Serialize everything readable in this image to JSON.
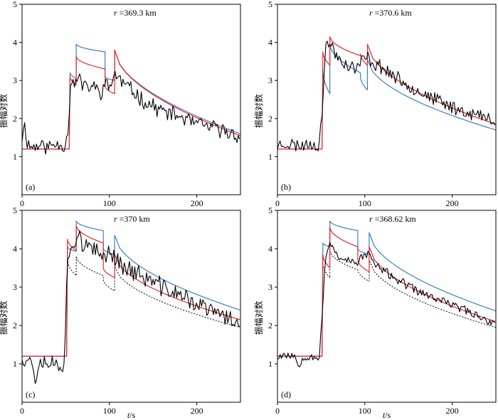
{
  "figure": {
    "ylabel": "振幅对数",
    "xlabel_italic": "t",
    "xlabel_unit": "/s"
  },
  "colors": {
    "observed": "#000000",
    "red_model": "#e8262b",
    "blue_model": "#3d7cc9",
    "dotted_model": "#000000"
  },
  "chart_data": [
    {
      "type": "line",
      "id": "a",
      "panel_label": "(a)",
      "r_label": "r",
      "annotation": "=369.3 km",
      "xlim": [
        0,
        250
      ],
      "ylim": [
        0,
        5
      ],
      "xticks": [
        0,
        100,
        200
      ],
      "yticks": [
        1,
        2,
        3,
        4,
        5
      ],
      "show_ylabel": true,
      "show_xlabel": false,
      "arrivals": [
        55,
        62,
        95,
        106
      ],
      "series": [
        {
          "name": "observed",
          "style": "observed",
          "base": 1.3,
          "noise": 0.18,
          "seed": 11,
          "points": [
            [
              0,
              1.5
            ],
            [
              2,
              1.9
            ],
            [
              6,
              1.4
            ],
            [
              10,
              1.25
            ],
            [
              20,
              1.3
            ],
            [
              30,
              1.25
            ],
            [
              40,
              1.35
            ],
            [
              48,
              1.3
            ],
            [
              52,
              1.5
            ],
            [
              54,
              2.2
            ],
            [
              56,
              3.2
            ],
            [
              58,
              2.9
            ],
            [
              62,
              2.95
            ],
            [
              66,
              3.1
            ],
            [
              70,
              2.8
            ],
            [
              80,
              2.85
            ],
            [
              90,
              2.7
            ],
            [
              95,
              2.9
            ],
            [
              100,
              2.8
            ],
            [
              106,
              3.2
            ],
            [
              110,
              3.05
            ],
            [
              120,
              2.85
            ],
            [
              140,
              2.45
            ],
            [
              160,
              2.2
            ],
            [
              180,
              2.05
            ],
            [
              200,
              1.85
            ],
            [
              220,
              1.75
            ],
            [
              240,
              1.6
            ],
            [
              250,
              1.55
            ]
          ]
        },
        {
          "name": "red model",
          "style": "red",
          "base": 1.2,
          "peaks": [
            3.1,
            3.62,
            2.85,
            3.8
          ],
          "decay": [
            0.22,
            0.32,
            0.2,
            0.3
          ],
          "tail_end": 1.55
        },
        {
          "name": "blue model",
          "style": "blue",
          "base": 1.2,
          "peaks": [
            3.2,
            3.95,
            3.1,
            3.8
          ],
          "decay": [
            0.15,
            0.2,
            0.1,
            0.2
          ],
          "tail_end": 1.6
        }
      ]
    },
    {
      "type": "line",
      "id": "b",
      "panel_label": "(b)",
      "r_label": "r",
      "annotation": "=370.6 km",
      "xlim": [
        0,
        250
      ],
      "ylim": [
        0,
        5
      ],
      "xticks": [
        0,
        100,
        200
      ],
      "yticks": [
        1,
        2,
        3,
        4,
        5
      ],
      "show_ylabel": true,
      "show_xlabel": false,
      "arrivals": [
        52,
        60,
        95,
        103
      ],
      "series": [
        {
          "name": "observed",
          "style": "observed",
          "base": 1.3,
          "noise": 0.16,
          "seed": 23,
          "points": [
            [
              0,
              1.3
            ],
            [
              10,
              1.35
            ],
            [
              20,
              1.3
            ],
            [
              30,
              1.3
            ],
            [
              40,
              1.35
            ],
            [
              48,
              1.3
            ],
            [
              52,
              2.5
            ],
            [
              55,
              3.9
            ],
            [
              60,
              4.0
            ],
            [
              64,
              3.8
            ],
            [
              70,
              3.6
            ],
            [
              80,
              3.4
            ],
            [
              90,
              3.3
            ],
            [
              95,
              3.5
            ],
            [
              103,
              3.6
            ],
            [
              110,
              3.45
            ],
            [
              120,
              3.35
            ],
            [
              140,
              3.0
            ],
            [
              160,
              2.75
            ],
            [
              180,
              2.5
            ],
            [
              200,
              2.3
            ],
            [
              220,
              2.15
            ],
            [
              240,
              2.0
            ],
            [
              250,
              1.95
            ]
          ]
        },
        {
          "name": "red model",
          "style": "red",
          "base": 1.2,
          "peaks": [
            3.75,
            4.15,
            3.7,
            3.95
          ],
          "decay": [
            0.35,
            0.5,
            0.3,
            0.25
          ],
          "tail_end": 1.85
        },
        {
          "name": "blue model",
          "style": "blue",
          "base": 1.2,
          "peaks": [
            3.25,
            3.95,
            3.1,
            3.55
          ],
          "decay": [
            0.6,
            0.75,
            0.35,
            0.4
          ],
          "tail_end": 1.7
        }
      ]
    },
    {
      "type": "line",
      "id": "c",
      "panel_label": "(c)",
      "r_label": "r",
      "annotation": "=370 km",
      "xlim": [
        0,
        250
      ],
      "ylim": [
        0,
        5
      ],
      "xticks": [
        0,
        100,
        200
      ],
      "yticks": [
        1,
        2,
        3,
        4,
        5
      ],
      "show_ylabel": true,
      "show_xlabel": true,
      "arrivals": [
        52,
        62,
        93,
        106
      ],
      "series": [
        {
          "name": "observed",
          "style": "observed",
          "base": 1.1,
          "noise": 0.22,
          "seed": 37,
          "points": [
            [
              0,
              1.2
            ],
            [
              10,
              1.1
            ],
            [
              16,
              0.6
            ],
            [
              20,
              1.1
            ],
            [
              30,
              1.05
            ],
            [
              40,
              1.0
            ],
            [
              48,
              1.0
            ],
            [
              52,
              3.5
            ],
            [
              56,
              4.1
            ],
            [
              62,
              4.3
            ],
            [
              66,
              4.4
            ],
            [
              70,
              4.1
            ],
            [
              80,
              3.95
            ],
            [
              90,
              3.8
            ],
            [
              95,
              3.9
            ],
            [
              106,
              3.85
            ],
            [
              110,
              3.65
            ],
            [
              120,
              3.5
            ],
            [
              140,
              3.25
            ],
            [
              160,
              3.0
            ],
            [
              180,
              2.8
            ],
            [
              200,
              2.55
            ],
            [
              220,
              2.35
            ],
            [
              240,
              2.15
            ],
            [
              250,
              2.1
            ]
          ]
        },
        {
          "name": "red model",
          "style": "red",
          "base": 1.2,
          "peaks": [
            4.25,
            4.6,
            3.5,
            3.85
          ],
          "decay": [
            0.3,
            0.45,
            0.25,
            0.3
          ],
          "tail_end": 2.15
        },
        {
          "name": "blue model",
          "style": "blue",
          "base": 1.2,
          "peaks": [
            4.05,
            4.72,
            4.0,
            4.35
          ],
          "decay": [
            0.12,
            0.25,
            0.15,
            0.2
          ],
          "tail_end": 2.4
        },
        {
          "name": "dotted model",
          "style": "dotted",
          "base": 1.2,
          "peaks": [
            3.7,
            3.8,
            3.2,
            3.55
          ],
          "decay": [
            0.4,
            0.5,
            0.3,
            0.3
          ],
          "tail_end": 1.95
        }
      ]
    },
    {
      "type": "line",
      "id": "d",
      "panel_label": "(d)",
      "r_label": "r",
      "annotation": "=368.62 km",
      "xlim": [
        0,
        250
      ],
      "ylim": [
        0,
        5
      ],
      "xticks": [
        0,
        100,
        200
      ],
      "yticks": [
        1,
        2,
        3,
        4,
        5
      ],
      "show_ylabel": true,
      "show_xlabel": true,
      "arrivals": [
        52,
        60,
        92,
        105
      ],
      "series": [
        {
          "name": "observed",
          "style": "observed",
          "base": 1.2,
          "noise": 0.1,
          "seed": 53,
          "points": [
            [
              0,
              1.2
            ],
            [
              10,
              1.25
            ],
            [
              20,
              1.2
            ],
            [
              24,
              0.95
            ],
            [
              30,
              1.2
            ],
            [
              40,
              1.2
            ],
            [
              48,
              1.15
            ],
            [
              52,
              2.6
            ],
            [
              55,
              3.7
            ],
            [
              60,
              4.2
            ],
            [
              64,
              4.0
            ],
            [
              70,
              3.8
            ],
            [
              80,
              3.7
            ],
            [
              90,
              3.6
            ],
            [
              95,
              3.75
            ],
            [
              105,
              3.9
            ],
            [
              110,
              3.6
            ],
            [
              120,
              3.45
            ],
            [
              140,
              3.15
            ],
            [
              160,
              2.9
            ],
            [
              180,
              2.7
            ],
            [
              200,
              2.55
            ],
            [
              220,
              2.35
            ],
            [
              240,
              2.15
            ],
            [
              250,
              2.0
            ]
          ]
        },
        {
          "name": "red model",
          "style": "red",
          "base": 1.2,
          "peaks": [
            3.85,
            4.55,
            3.7,
            4.05
          ],
          "decay": [
            0.35,
            0.5,
            0.3,
            0.35
          ],
          "tail_end": 2.1
        },
        {
          "name": "blue model",
          "style": "blue",
          "base": 1.2,
          "peaks": [
            4.15,
            4.72,
            4.0,
            4.42
          ],
          "decay": [
            0.1,
            0.25,
            0.15,
            0.18
          ],
          "tail_end": 2.38
        },
        {
          "name": "dotted model",
          "style": "dotted",
          "base": 1.2,
          "peaks": [
            3.6,
            3.95,
            3.45,
            3.7
          ],
          "decay": [
            0.35,
            0.5,
            0.3,
            0.35
          ],
          "tail_end": 1.95
        }
      ]
    }
  ]
}
